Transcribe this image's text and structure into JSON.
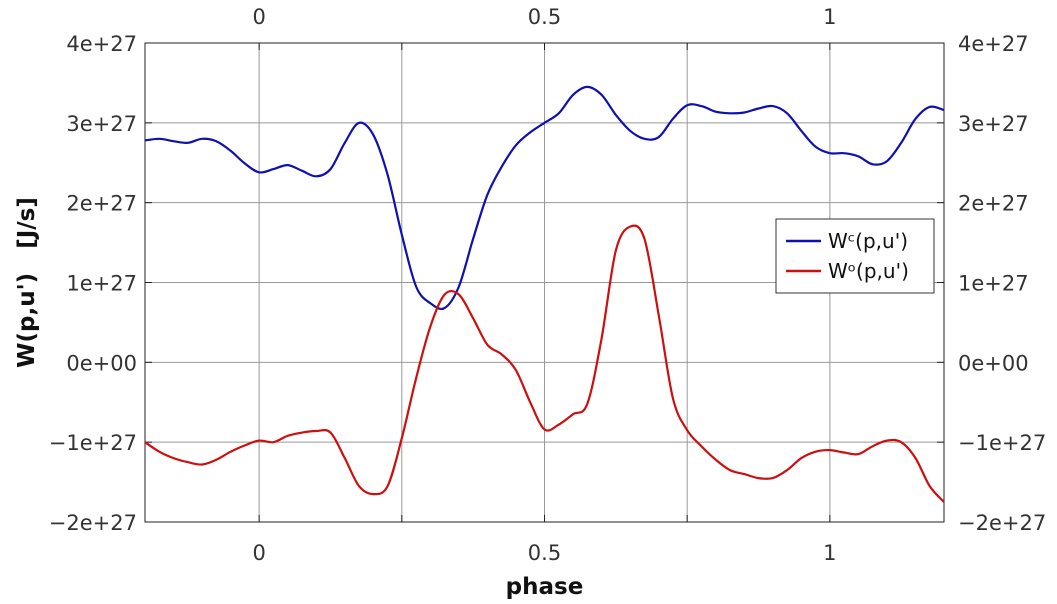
{
  "chart_data": {
    "type": "line",
    "xlabel": "phase",
    "ylabel": "W(p,u')   [J/s]",
    "xlim": [
      -0.2,
      1.2
    ],
    "ylim": [
      -2e+27,
      4e+27
    ],
    "x_ticks": [
      {
        "value": 0,
        "label": "0"
      },
      {
        "value": 0.5,
        "label": "0.5"
      },
      {
        "value": 1,
        "label": "1"
      }
    ],
    "x_minor_gridlines": [
      0.25,
      0.75
    ],
    "y_ticks": [
      {
        "value": -2e+27,
        "label": "−2e+27"
      },
      {
        "value": -1e+27,
        "label": "−1e+27"
      },
      {
        "value": 0,
        "label": "0e+00"
      },
      {
        "value": 1e+27,
        "label": "1e+27"
      },
      {
        "value": 2e+27,
        "label": "2e+27"
      },
      {
        "value": 3e+27,
        "label": "3e+27"
      },
      {
        "value": 4e+27,
        "label": "4e+27"
      }
    ],
    "grid": true,
    "legend_position": "right",
    "series": [
      {
        "name": "Wᶜ(p,u')",
        "color": "#1010b0",
        "x": [
          -0.2,
          -0.175,
          -0.15,
          -0.125,
          -0.1,
          -0.075,
          -0.05,
          -0.025,
          0,
          0.025,
          0.05,
          0.075,
          0.1,
          0.125,
          0.15,
          0.175,
          0.2,
          0.225,
          0.25,
          0.275,
          0.3,
          0.325,
          0.35,
          0.375,
          0.4,
          0.425,
          0.45,
          0.475,
          0.5,
          0.525,
          0.55,
          0.575,
          0.6,
          0.625,
          0.65,
          0.675,
          0.7,
          0.725,
          0.75,
          0.775,
          0.8,
          0.825,
          0.85,
          0.875,
          0.9,
          0.925,
          0.95,
          0.975,
          1,
          1.025,
          1.05,
          1.075,
          1.1,
          1.125,
          1.15,
          1.175,
          1.2
        ],
        "y": [
          2.78e+27,
          2.8e+27,
          2.77e+27,
          2.75e+27,
          2.8e+27,
          2.77e+27,
          2.65e+27,
          2.49e+27,
          2.38e+27,
          2.42e+27,
          2.47e+27,
          2.4e+27,
          2.33e+27,
          2.42e+27,
          2.75e+27,
          3e+27,
          2.85e+27,
          2.35e+27,
          1.6e+27,
          9.5e+26,
          7.4e+26,
          6.8e+26,
          9.5e+26,
          1.55e+27,
          2.1e+27,
          2.45e+27,
          2.72e+27,
          2.88e+27,
          3e+27,
          3.12e+27,
          3.35e+27,
          3.45e+27,
          3.35e+27,
          3.1e+27,
          2.9e+27,
          2.8e+27,
          2.82e+27,
          3.05e+27,
          3.22e+27,
          3.21e+27,
          3.14e+27,
          3.12e+27,
          3.13e+27,
          3.18e+27,
          3.21e+27,
          3.12e+27,
          2.9e+27,
          2.7e+27,
          2.62e+27,
          2.62e+27,
          2.58e+27,
          2.48e+27,
          2.52e+27,
          2.75e+27,
          3.05e+27,
          3.2e+27,
          3.16e+27
        ]
      },
      {
        "name": "Wᵒ(p,u')",
        "color": "#cc1010",
        "x": [
          -0.2,
          -0.175,
          -0.15,
          -0.125,
          -0.1,
          -0.075,
          -0.05,
          -0.025,
          0,
          0.025,
          0.05,
          0.075,
          0.1,
          0.125,
          0.15,
          0.175,
          0.2,
          0.225,
          0.25,
          0.275,
          0.3,
          0.325,
          0.35,
          0.375,
          0.4,
          0.425,
          0.45,
          0.475,
          0.5,
          0.525,
          0.55,
          0.575,
          0.6,
          0.625,
          0.65,
          0.675,
          0.7,
          0.725,
          0.75,
          0.775,
          0.8,
          0.825,
          0.85,
          0.875,
          0.9,
          0.925,
          0.95,
          0.975,
          1,
          1.025,
          1.05,
          1.075,
          1.1,
          1.125,
          1.15,
          1.175,
          1.2
        ],
        "y": [
          -1e+27,
          -1.12e+27,
          -1.2e+27,
          -1.25e+27,
          -1.28e+27,
          -1.22e+27,
          -1.12e+27,
          -1.04e+27,
          -9.8e+26,
          -1e+27,
          -9.2e+26,
          -8.8e+26,
          -8.6e+26,
          -8.8e+26,
          -1.2e+27,
          -1.55e+27,
          -1.65e+27,
          -1.55e+27,
          -9.5e+26,
          -2e+26,
          4.5e+26,
          8.5e+26,
          8.5e+26,
          5.5e+26,
          2.2e+26,
          1e+26,
          -1e+26,
          -5e+26,
          -8.4e+26,
          -7.8e+26,
          -6.5e+26,
          -5.2e+26,
          3e+26,
          1.4e+27,
          1.7e+27,
          1.55e+27,
          6e+26,
          -4.5e+26,
          -8.5e+26,
          -1.05e+27,
          -1.22e+27,
          -1.35e+27,
          -1.4e+27,
          -1.45e+27,
          -1.45e+27,
          -1.35e+27,
          -1.2e+27,
          -1.12e+27,
          -1.1e+27,
          -1.13e+27,
          -1.15e+27,
          -1.05e+27,
          -9.8e+26,
          -1e+27,
          -1.2e+27,
          -1.55e+27,
          -1.75e+27
        ]
      }
    ]
  }
}
